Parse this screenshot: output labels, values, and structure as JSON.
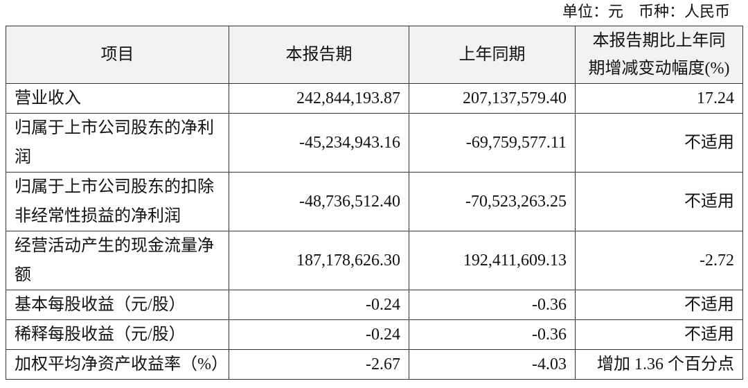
{
  "unit_note": "单位：元　币种：人民币",
  "table": {
    "header": [
      "项目",
      "本报告期",
      "上年同期",
      [
        "本报告期比上年同",
        "期增减变动幅度(%)"
      ]
    ],
    "rows": [
      [
        "营业收入",
        "242,844,193.87",
        "207,137,579.40",
        "17.24"
      ],
      [
        "归属于上市公司股东的净利润",
        "-45,234,943.16",
        "-69,759,577.11",
        "不适用"
      ],
      [
        "归属于上市公司股东的扣除非经常性损益的净利润",
        "-48,736,512.40",
        "-70,523,263.25",
        "不适用"
      ],
      [
        "经营活动产生的现金流量净额",
        "187,178,626.30",
        "192,411,609.13",
        "-2.72"
      ],
      [
        "基本每股收益（元/股）",
        "-0.24",
        "-0.36",
        "不适用"
      ],
      [
        "稀释每股收益（元/股）",
        "-0.24",
        "-0.36",
        "不适用"
      ],
      [
        "加权平均净资产收益率（%）",
        "-2.67",
        "-4.03",
        "增加 1.36 个百分点"
      ]
    ]
  }
}
